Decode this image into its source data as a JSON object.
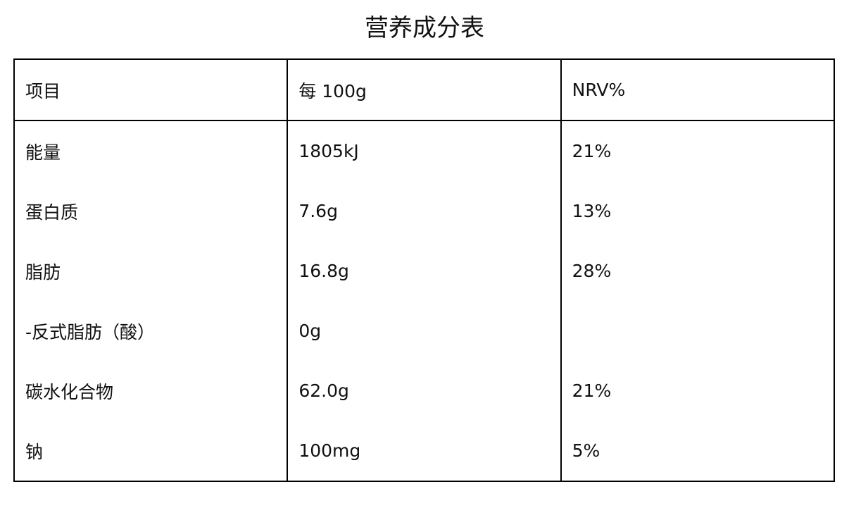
{
  "title": "营养成分表",
  "table": {
    "header": [
      "项目",
      "每 100g",
      "NRV%"
    ],
    "rows": [
      [
        "能量",
        "1805kJ",
        "21%"
      ],
      [
        "蛋白质",
        "7.6g",
        "13%"
      ],
      [
        "脂肪",
        "16.8g",
        "28%"
      ],
      [
        "-反式脂肪（酸）",
        "0g",
        null
      ],
      [
        "碳水化合物",
        "62.0g",
        "21%"
      ],
      [
        "钠",
        "100mg",
        "5%"
      ]
    ]
  }
}
